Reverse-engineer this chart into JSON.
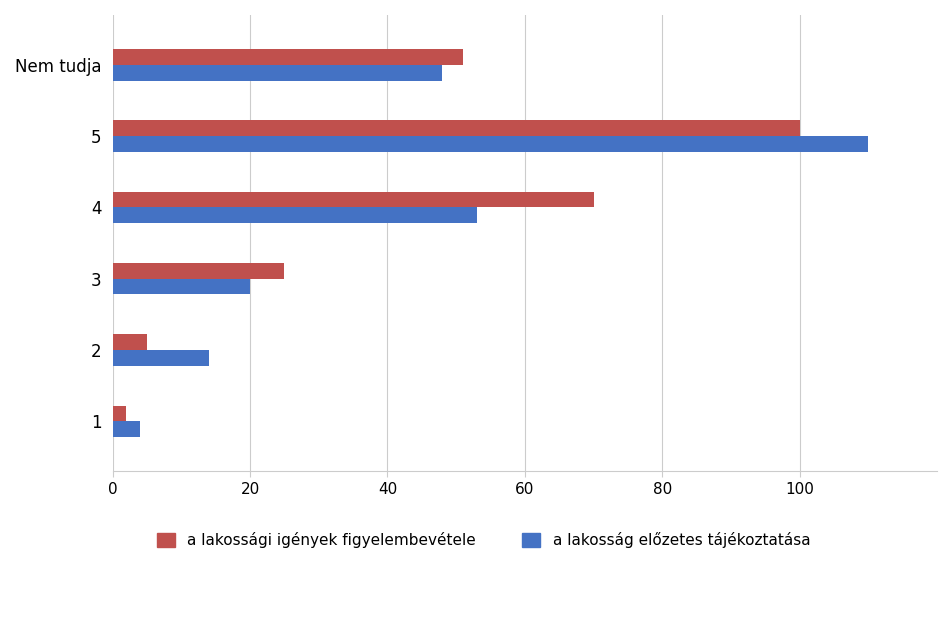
{
  "categories": [
    "1",
    "2",
    "3",
    "4",
    "5",
    "Nem tudja"
  ],
  "series1_label": "a lakossági igények figyelembevétele",
  "series2_label": "a lakosság előzetes tájékoztatása",
  "series1_values": [
    2,
    5,
    25,
    70,
    100,
    51
  ],
  "series2_values": [
    4,
    14,
    20,
    53,
    110,
    48
  ],
  "series1_color": "#C0504D",
  "series2_color": "#4472C4",
  "xlim": [
    0,
    120
  ],
  "xticks": [
    0,
    20,
    40,
    60,
    80,
    100
  ],
  "background_color": "#FFFFFF",
  "bar_height": 0.22,
  "figsize": [
    9.52,
    6.38
  ],
  "dpi": 100
}
